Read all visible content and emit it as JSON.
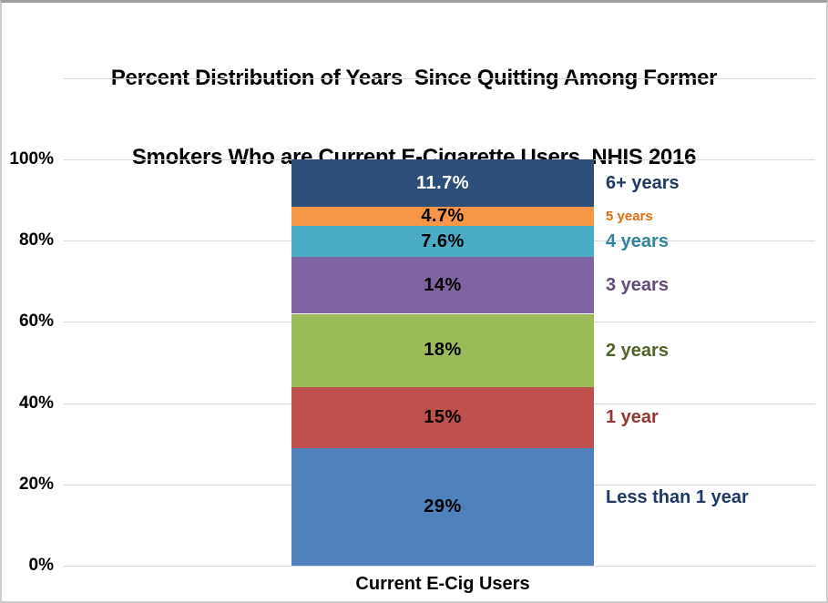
{
  "title": {
    "line1": "Percent Distribution of Years  Since Quitting Among Former",
    "line2": "Smokers Who are Current E-Cigarette Users, NHIS 2016"
  },
  "x_axis": {
    "category_label": "Current E-Cig Users"
  },
  "y_axis": {
    "ticks": [
      {
        "label": "100%",
        "value": 100
      },
      {
        "label": "80%",
        "value": 80
      },
      {
        "label": "60%",
        "value": 60
      },
      {
        "label": "40%",
        "value": 40
      },
      {
        "label": "20%",
        "value": 20
      },
      {
        "label": "0%",
        "value": 0
      }
    ]
  },
  "chart_data": {
    "type": "bar",
    "stacked": true,
    "title": "Percent Distribution of Years Since Quitting Among Former Smokers Who are Current E-Cigarette Users, NHIS 2016",
    "xlabel": "Current E-Cig Users",
    "ylabel": "",
    "ylim": [
      0,
      100
    ],
    "plot_top_percent": 120,
    "grid": true,
    "gridline_percents": [
      0,
      20,
      40,
      60,
      80,
      100,
      120
    ],
    "legend_position": "right-of-bar",
    "categories": [
      "Current E-Cig Users"
    ],
    "series": [
      {
        "name": "Less than 1 year",
        "value": 29,
        "display": "29%",
        "color": "#4F81BD",
        "label_color": "#1F3864",
        "value_text_color": "#000000",
        "small_label": false
      },
      {
        "name": "1 year",
        "value": 15,
        "display": "15%",
        "color": "#C0504D",
        "label_color": "#943634",
        "value_text_color": "#000000",
        "small_label": false
      },
      {
        "name": "2 years",
        "value": 18,
        "display": "18%",
        "color": "#9BBB59",
        "label_color": "#4F6228",
        "value_text_color": "#000000",
        "small_label": false
      },
      {
        "name": "3 years",
        "value": 14,
        "display": "14%",
        "color": "#8064A2",
        "label_color": "#604A7B",
        "value_text_color": "#000000",
        "small_label": false
      },
      {
        "name": "4 years",
        "value": 7.6,
        "display": "7.6%",
        "color": "#4BACC6",
        "label_color": "#31849B",
        "value_text_color": "#000000",
        "small_label": false
      },
      {
        "name": "5 years",
        "value": 4.7,
        "display": "4.7%",
        "color": "#F79646",
        "label_color": "#E36C0A",
        "value_text_color": "#000000",
        "small_label": true
      },
      {
        "name": "6+ years",
        "value": 11.7,
        "display": "11.7%",
        "color": "#2C4E79",
        "label_color": "#1F3864",
        "value_text_color": "#FFFFFF",
        "small_label": false
      }
    ]
  },
  "colors": {
    "gridline": "#D9D9D9",
    "background": "#FFFFFF",
    "frame_border": "#CDCDCD"
  }
}
